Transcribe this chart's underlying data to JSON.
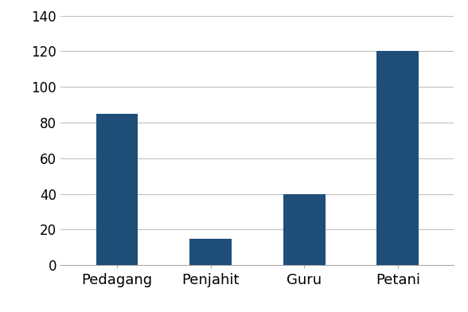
{
  "categories": [
    "Pedagang",
    "Penjahit",
    "Guru",
    "Petani"
  ],
  "values": [
    85,
    15,
    40,
    120
  ],
  "bar_color": "#1F4E79",
  "ylim": [
    0,
    140
  ],
  "yticks": [
    0,
    20,
    40,
    60,
    80,
    100,
    120,
    140
  ],
  "background_color": "#ffffff",
  "grid_color": "#c0c0c0",
  "tick_fontsize": 12,
  "label_fontsize": 13,
  "bar_width": 0.45
}
